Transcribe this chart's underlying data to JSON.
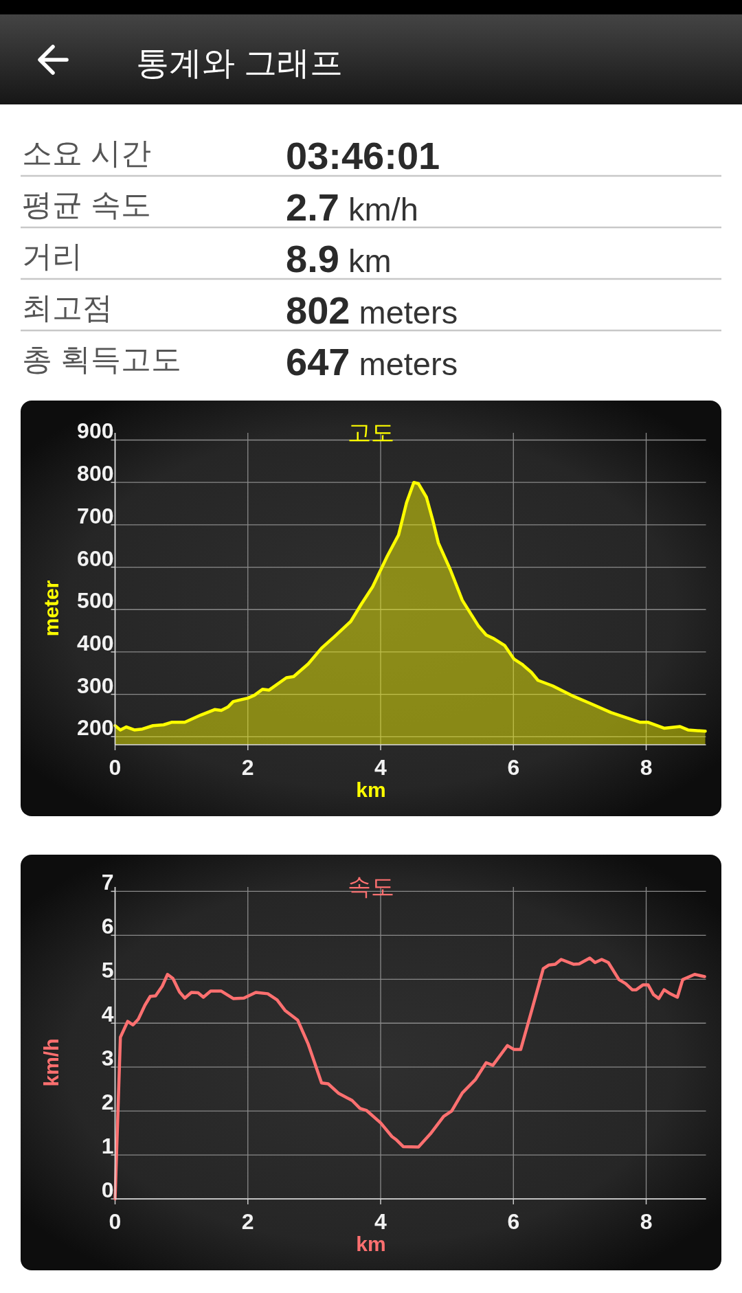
{
  "chart_data": [
    {
      "type": "other",
      "title": "통계와 그래프",
      "annotations": [
        "소요 시간",
        "03:46:01",
        "평균 속도",
        "2.7 km/h",
        "거리",
        "8.9 km",
        "최고점",
        "802 meters",
        "총 획득고도",
        "647 meters"
      ]
    },
    {
      "type": "area",
      "title": "고도",
      "xlabel": "km",
      "ylabel": "meter",
      "color": "#ffff00",
      "grid": true,
      "xlim": [
        0,
        8.9
      ],
      "ylim": [
        181,
        917
      ],
      "xticks": [
        0,
        2,
        4,
        6,
        8
      ],
      "yticks": [
        200,
        300,
        400,
        500,
        600,
        700,
        800,
        900
      ],
      "x": [
        0,
        0.08,
        0.17,
        0.29,
        0.41,
        0.57,
        0.73,
        0.85,
        1.05,
        1.29,
        1.5,
        1.6,
        1.7,
        1.78,
        2.0,
        2.1,
        2.22,
        2.32,
        2.58,
        2.69,
        2.91,
        3.11,
        3.31,
        3.55,
        3.71,
        3.88,
        4.1,
        4.27,
        4.39,
        4.5,
        4.57,
        4.69,
        4.79,
        4.87,
        5.05,
        5.23,
        5.47,
        5.59,
        5.71,
        5.87,
        6.01,
        6.13,
        6.27,
        6.37,
        6.59,
        6.91,
        7.15,
        7.47,
        7.91,
        8.03,
        8.27,
        8.51,
        8.63,
        8.89
      ],
      "values": [
        226,
        216,
        223,
        216,
        218,
        226,
        228,
        234,
        234,
        251,
        264,
        262,
        270,
        283,
        291,
        298,
        312,
        310,
        339,
        342,
        372,
        409,
        437,
        472,
        513,
        554,
        626,
        676,
        752,
        800,
        797,
        765,
        708,
        657,
        594,
        522,
        462,
        440,
        431,
        415,
        383,
        371,
        352,
        333,
        320,
        295,
        279,
        257,
        234,
        234,
        220,
        224,
        216,
        213
      ]
    },
    {
      "type": "line",
      "title": "속도",
      "xlabel": "km",
      "ylabel": "km/h",
      "color": "#ff7070",
      "grid": true,
      "xlim": [
        0,
        8.9
      ],
      "ylim": [
        0,
        7.1
      ],
      "xticks": [
        0,
        2,
        4,
        6,
        8
      ],
      "yticks": [
        0,
        1,
        2,
        3,
        4,
        5,
        6,
        7
      ],
      "x": [
        0,
        0.08,
        0.19,
        0.27,
        0.35,
        0.45,
        0.53,
        0.61,
        0.71,
        0.79,
        0.87,
        0.97,
        1.05,
        1.15,
        1.25,
        1.33,
        1.44,
        1.6,
        1.78,
        1.94,
        2.12,
        2.3,
        2.44,
        2.56,
        2.75,
        2.91,
        3.11,
        3.21,
        3.37,
        3.57,
        3.69,
        3.79,
        4.0,
        4.17,
        4.24,
        4.34,
        4.57,
        4.75,
        4.95,
        5.07,
        5.23,
        5.43,
        5.59,
        5.69,
        5.91,
        6.01,
        6.11,
        6.27,
        6.45,
        6.53,
        6.63,
        6.72,
        6.91,
        6.99,
        7.15,
        7.23,
        7.33,
        7.43,
        7.59,
        7.69,
        7.79,
        7.85,
        7.95,
        8.03,
        8.11,
        8.19,
        8.27,
        8.35,
        8.47,
        8.55,
        8.73,
        8.88
      ],
      "values": [
        0,
        3.68,
        4.04,
        3.96,
        4.09,
        4.41,
        4.61,
        4.62,
        4.84,
        5.11,
        5.02,
        4.71,
        4.57,
        4.7,
        4.69,
        4.59,
        4.73,
        4.73,
        4.56,
        4.57,
        4.7,
        4.67,
        4.53,
        4.29,
        4.07,
        3.52,
        2.64,
        2.62,
        2.4,
        2.24,
        2.06,
        2.01,
        1.73,
        1.42,
        1.34,
        1.19,
        1.18,
        1.48,
        1.88,
        2.0,
        2.41,
        2.72,
        3.1,
        3.04,
        3.49,
        3.4,
        3.4,
        4.26,
        5.24,
        5.32,
        5.34,
        5.45,
        5.34,
        5.35,
        5.48,
        5.38,
        5.45,
        5.38,
        4.99,
        4.9,
        4.76,
        4.76,
        4.87,
        4.87,
        4.65,
        4.56,
        4.76,
        4.68,
        4.59,
        4.99,
        5.11,
        5.06
      ]
    }
  ]
}
